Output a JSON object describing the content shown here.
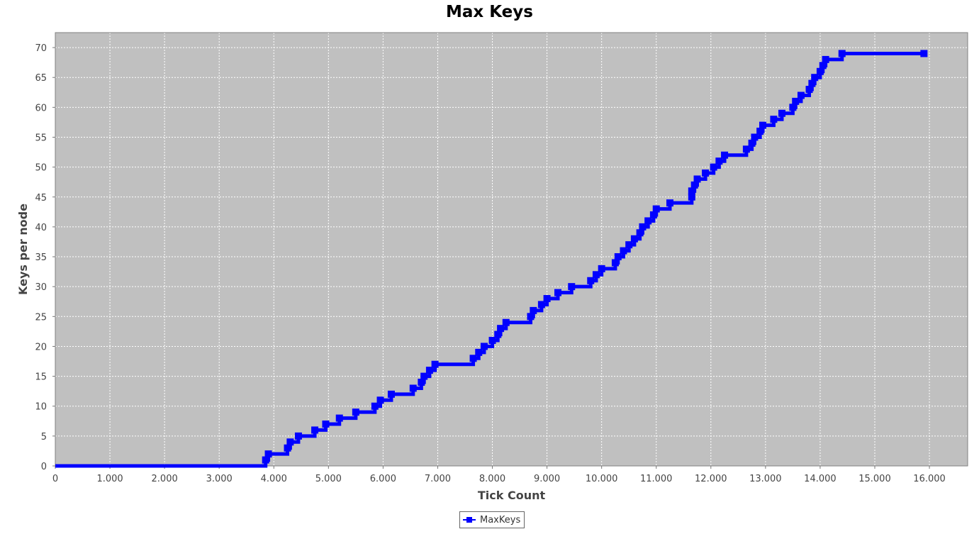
{
  "chart_data": {
    "type": "line",
    "title": "Max Keys",
    "xlabel": "Tick Count",
    "ylabel": "Keys per node",
    "xlim": [
      0,
      16700
    ],
    "ylim": [
      0,
      72.5
    ],
    "x_ticks": [
      0,
      1000,
      2000,
      3000,
      4000,
      5000,
      6000,
      7000,
      8000,
      9000,
      10000,
      11000,
      12000,
      13000,
      14000,
      15000,
      16000
    ],
    "x_tick_labels": [
      "0",
      "1.000",
      "2.000",
      "3.000",
      "4.000",
      "5.000",
      "6.000",
      "7.000",
      "8.000",
      "9.000",
      "10.000",
      "11.000",
      "12.000",
      "13.000",
      "14.000",
      "15.000",
      "16.000"
    ],
    "y_ticks": [
      0,
      5,
      10,
      15,
      20,
      25,
      30,
      35,
      40,
      45,
      50,
      55,
      60,
      65,
      70
    ],
    "y_tick_labels": [
      "0",
      "5",
      "10",
      "15",
      "20",
      "25",
      "30",
      "35",
      "40",
      "45",
      "50",
      "55",
      "60",
      "65",
      "70"
    ],
    "grid": true,
    "background": "#c0c0c0",
    "legend_position": "bottom-center",
    "series": [
      {
        "name": "MaxKeys",
        "color": "#0000ff",
        "step": true,
        "points": [
          [
            0,
            0
          ],
          [
            3850,
            1
          ],
          [
            3900,
            2
          ],
          [
            4250,
            3
          ],
          [
            4300,
            4
          ],
          [
            4450,
            5
          ],
          [
            4750,
            6
          ],
          [
            4950,
            7
          ],
          [
            5200,
            8
          ],
          [
            5500,
            9
          ],
          [
            5850,
            10
          ],
          [
            5950,
            11
          ],
          [
            6150,
            12
          ],
          [
            6550,
            13
          ],
          [
            6700,
            14
          ],
          [
            6750,
            15
          ],
          [
            6850,
            16
          ],
          [
            6950,
            17
          ],
          [
            7650,
            18
          ],
          [
            7750,
            19
          ],
          [
            7850,
            20
          ],
          [
            8000,
            21
          ],
          [
            8100,
            22
          ],
          [
            8150,
            23
          ],
          [
            8250,
            24
          ],
          [
            8700,
            25
          ],
          [
            8750,
            26
          ],
          [
            8900,
            27
          ],
          [
            9000,
            28
          ],
          [
            9200,
            29
          ],
          [
            9450,
            30
          ],
          [
            9800,
            31
          ],
          [
            9900,
            32
          ],
          [
            10000,
            33
          ],
          [
            10250,
            34
          ],
          [
            10300,
            35
          ],
          [
            10400,
            36
          ],
          [
            10500,
            37
          ],
          [
            10600,
            38
          ],
          [
            10700,
            39
          ],
          [
            10750,
            40
          ],
          [
            10850,
            41
          ],
          [
            10950,
            42
          ],
          [
            11000,
            43
          ],
          [
            11250,
            44
          ],
          [
            11650,
            45
          ],
          [
            11650,
            46
          ],
          [
            11700,
            47
          ],
          [
            11750,
            48
          ],
          [
            11900,
            49
          ],
          [
            12050,
            50
          ],
          [
            12150,
            51
          ],
          [
            12250,
            52
          ],
          [
            12650,
            53
          ],
          [
            12750,
            54
          ],
          [
            12800,
            55
          ],
          [
            12900,
            56
          ],
          [
            12950,
            57
          ],
          [
            13150,
            58
          ],
          [
            13300,
            59
          ],
          [
            13500,
            60
          ],
          [
            13550,
            61
          ],
          [
            13650,
            62
          ],
          [
            13800,
            63
          ],
          [
            13850,
            64
          ],
          [
            13900,
            65
          ],
          [
            14000,
            66
          ],
          [
            14050,
            67
          ],
          [
            14100,
            68
          ],
          [
            14400,
            69
          ],
          [
            15900,
            69
          ]
        ]
      }
    ]
  }
}
